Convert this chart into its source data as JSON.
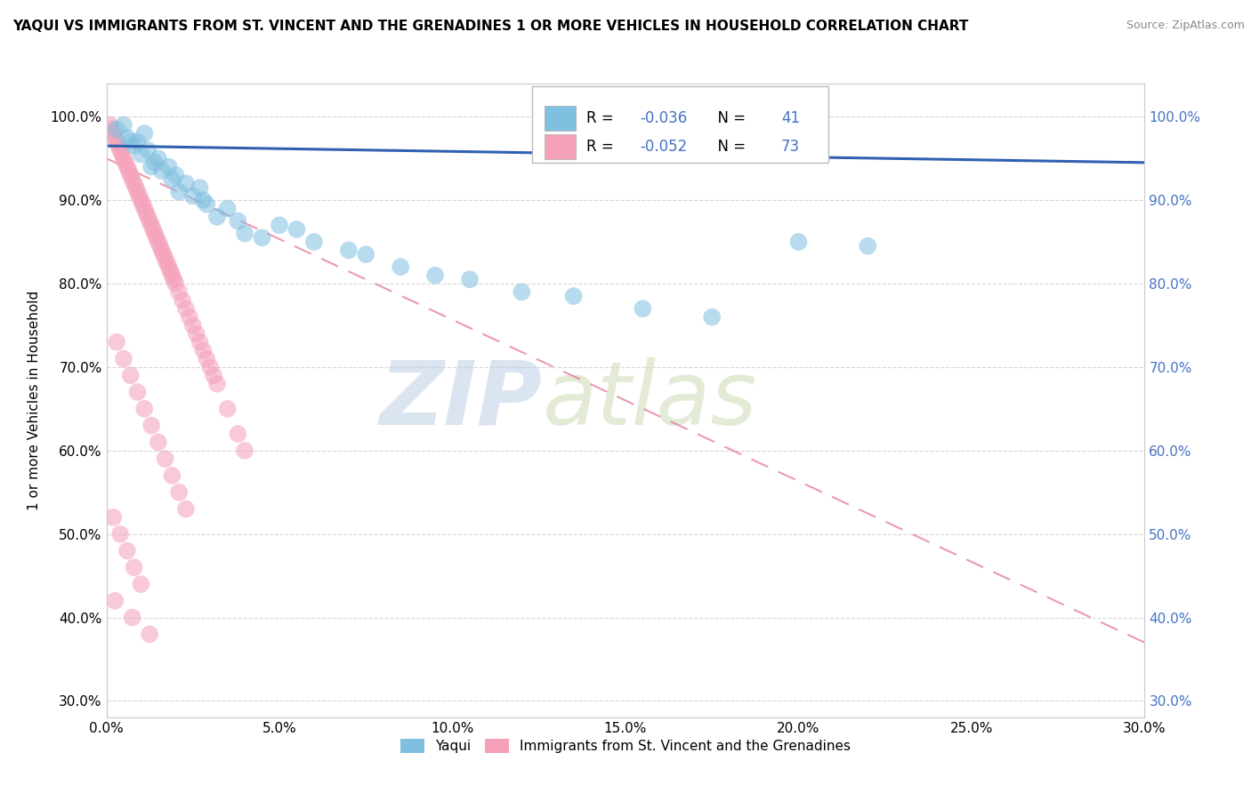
{
  "title": "YAQUI VS IMMIGRANTS FROM ST. VINCENT AND THE GRENADINES 1 OR MORE VEHICLES IN HOUSEHOLD CORRELATION CHART",
  "source": "Source: ZipAtlas.com",
  "ylabel": "1 or more Vehicles in Household",
  "xlabel_vals": [
    0.0,
    5.0,
    10.0,
    15.0,
    20.0,
    25.0,
    30.0
  ],
  "ylabel_vals": [
    30.0,
    40.0,
    50.0,
    60.0,
    70.0,
    80.0,
    90.0,
    100.0
  ],
  "xlim": [
    0.0,
    30.0
  ],
  "ylim": [
    28.0,
    104.0
  ],
  "blue_R": -0.036,
  "blue_N": 41,
  "pink_R": -0.052,
  "pink_N": 73,
  "blue_color": "#7fbfdf",
  "pink_color": "#f4a0b8",
  "blue_line_color": "#3060b0",
  "pink_line_color": "#e07090",
  "watermark_zip": "ZIP",
  "watermark_atlas": "atlas",
  "legend_yaqui": "Yaqui",
  "legend_svg": "Immigrants from St. Vincent and the Grenadines",
  "blue_scatter_x": [
    0.3,
    0.5,
    0.6,
    0.8,
    0.9,
    1.0,
    1.1,
    1.2,
    1.4,
    1.5,
    1.6,
    1.8,
    1.9,
    2.0,
    2.1,
    2.3,
    2.5,
    2.7,
    2.9,
    3.2,
    3.5,
    3.8,
    4.0,
    4.5,
    5.0,
    5.5,
    6.0,
    7.0,
    7.5,
    8.5,
    9.5,
    10.5,
    12.0,
    13.5,
    15.5,
    17.5,
    20.0,
    22.0,
    1.3,
    0.7,
    2.8
  ],
  "blue_scatter_y": [
    98.5,
    99.0,
    97.5,
    96.5,
    97.0,
    95.5,
    98.0,
    96.0,
    94.5,
    95.0,
    93.5,
    94.0,
    92.5,
    93.0,
    91.0,
    92.0,
    90.5,
    91.5,
    89.5,
    88.0,
    89.0,
    87.5,
    86.0,
    85.5,
    87.0,
    86.5,
    85.0,
    84.0,
    83.5,
    82.0,
    81.0,
    80.5,
    79.0,
    78.5,
    77.0,
    76.0,
    85.0,
    84.5,
    94.0,
    97.0,
    90.0
  ],
  "pink_scatter_x": [
    0.1,
    0.15,
    0.2,
    0.25,
    0.3,
    0.35,
    0.4,
    0.45,
    0.5,
    0.55,
    0.6,
    0.65,
    0.7,
    0.75,
    0.8,
    0.85,
    0.9,
    0.95,
    1.0,
    1.05,
    1.1,
    1.15,
    1.2,
    1.25,
    1.3,
    1.35,
    1.4,
    1.45,
    1.5,
    1.55,
    1.6,
    1.65,
    1.7,
    1.75,
    1.8,
    1.85,
    1.9,
    1.95,
    2.0,
    2.1,
    2.2,
    2.3,
    2.4,
    2.5,
    2.6,
    2.7,
    2.8,
    2.9,
    3.0,
    3.1,
    3.2,
    3.5,
    3.8,
    4.0,
    0.3,
    0.5,
    0.7,
    0.9,
    1.1,
    1.3,
    1.5,
    1.7,
    1.9,
    2.1,
    2.3,
    0.2,
    0.4,
    0.6,
    0.8,
    1.0,
    0.25,
    0.75,
    1.25
  ],
  "pink_scatter_y": [
    99.0,
    98.5,
    98.0,
    97.5,
    97.0,
    96.5,
    96.0,
    95.5,
    95.0,
    94.5,
    94.0,
    93.5,
    93.0,
    92.5,
    92.0,
    91.5,
    91.0,
    90.5,
    90.0,
    89.5,
    89.0,
    88.5,
    88.0,
    87.5,
    87.0,
    86.5,
    86.0,
    85.5,
    85.0,
    84.5,
    84.0,
    83.5,
    83.0,
    82.5,
    82.0,
    81.5,
    81.0,
    80.5,
    80.0,
    79.0,
    78.0,
    77.0,
    76.0,
    75.0,
    74.0,
    73.0,
    72.0,
    71.0,
    70.0,
    69.0,
    68.0,
    65.0,
    62.0,
    60.0,
    73.0,
    71.0,
    69.0,
    67.0,
    65.0,
    63.0,
    61.0,
    59.0,
    57.0,
    55.0,
    53.0,
    52.0,
    50.0,
    48.0,
    46.0,
    44.0,
    42.0,
    40.0,
    38.0
  ],
  "blue_trend_x": [
    0.0,
    30.0
  ],
  "blue_trend_y": [
    96.5,
    94.5
  ],
  "pink_trend_x": [
    0.0,
    30.0
  ],
  "pink_trend_y": [
    95.0,
    37.0
  ]
}
